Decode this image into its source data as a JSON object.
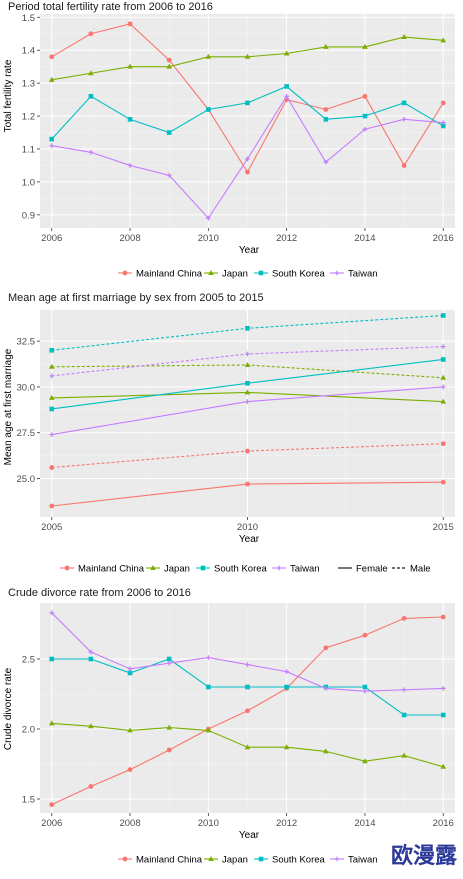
{
  "chart_data": [
    {
      "type": "line",
      "title": "Period total fertility rate from 2006 to 2016",
      "xlabel": "Year",
      "ylabel": "Total fertility rate",
      "x": [
        2006,
        2007,
        2008,
        2009,
        2010,
        2011,
        2012,
        2013,
        2014,
        2015,
        2016
      ],
      "xlim": [
        2005.7,
        2016.3
      ],
      "ylim": [
        0.86,
        1.51
      ],
      "xticks": [
        2006,
        2008,
        2010,
        2012,
        2014,
        2016
      ],
      "yticks": [
        0.9,
        1.0,
        1.1,
        1.2,
        1.3,
        1.4,
        1.5
      ],
      "ytick_labels": [
        "0.9",
        "1.0",
        "1.1",
        "1.2",
        "1.3",
        "1.4",
        "1.5"
      ],
      "grid": true,
      "legend_position": "bottom",
      "series": [
        {
          "name": "Mainland China",
          "color": "#F8766D",
          "marker": "circle",
          "values": [
            1.38,
            1.45,
            1.48,
            1.37,
            1.22,
            1.03,
            1.25,
            1.22,
            1.26,
            1.05,
            1.24
          ]
        },
        {
          "name": "Japan",
          "color": "#7CAE00",
          "marker": "triangle",
          "values": [
            1.31,
            1.33,
            1.35,
            1.35,
            1.38,
            1.38,
            1.39,
            1.41,
            1.41,
            1.44,
            1.43
          ]
        },
        {
          "name": "South Korea",
          "color": "#00BFC4",
          "marker": "square",
          "values": [
            1.13,
            1.26,
            1.19,
            1.15,
            1.22,
            1.24,
            1.29,
            1.19,
            1.2,
            1.24,
            1.17
          ]
        },
        {
          "name": "Taiwan",
          "color": "#C77CFF",
          "marker": "cross",
          "values": [
            1.11,
            1.09,
            1.05,
            1.02,
            0.89,
            1.07,
            1.26,
            1.06,
            1.16,
            1.19,
            1.18
          ]
        }
      ]
    },
    {
      "type": "line",
      "title": "Mean age at first marriage by sex from 2005 to 2015",
      "xlabel": "Year",
      "ylabel": "Mean age at first marriage",
      "x": [
        2005,
        2010,
        2015
      ],
      "xlim": [
        2004.7,
        2015.3
      ],
      "ylim": [
        22.9,
        34.2
      ],
      "xticks": [
        2005,
        2010,
        2015
      ],
      "yticks": [
        25.0,
        27.5,
        30.0,
        32.5
      ],
      "ytick_labels": [
        "25.0",
        "27.5",
        "30.0",
        "32.5"
      ],
      "grid": true,
      "legend_position": "bottom",
      "linetype_legend": [
        {
          "label": "Female",
          "dash": "solid"
        },
        {
          "label": "Male",
          "dash": "dashed"
        }
      ],
      "series": [
        {
          "name": "Mainland China",
          "color": "#F8766D",
          "marker": "circle",
          "sex": "Female",
          "values": [
            23.5,
            24.7,
            24.8
          ]
        },
        {
          "name": "Mainland China",
          "color": "#F8766D",
          "marker": "circle",
          "sex": "Male",
          "values": [
            25.6,
            26.5,
            26.9
          ]
        },
        {
          "name": "Japan",
          "color": "#7CAE00",
          "marker": "triangle",
          "sex": "Female",
          "values": [
            29.4,
            29.7,
            29.2
          ]
        },
        {
          "name": "Japan",
          "color": "#7CAE00",
          "marker": "triangle",
          "sex": "Male",
          "values": [
            31.1,
            31.2,
            30.5
          ]
        },
        {
          "name": "South Korea",
          "color": "#00BFC4",
          "marker": "square",
          "sex": "Female",
          "values": [
            28.8,
            30.2,
            31.5
          ]
        },
        {
          "name": "South Korea",
          "color": "#00BFC4",
          "marker": "square",
          "sex": "Male",
          "values": [
            32.0,
            33.2,
            33.9
          ]
        },
        {
          "name": "Taiwan",
          "color": "#C77CFF",
          "marker": "cross",
          "sex": "Female",
          "values": [
            27.4,
            29.2,
            30.0
          ]
        },
        {
          "name": "Taiwan",
          "color": "#C77CFF",
          "marker": "cross",
          "sex": "Male",
          "values": [
            30.6,
            31.8,
            32.2
          ]
        }
      ]
    },
    {
      "type": "line",
      "title": "Crude divorce rate from 2006 to 2016",
      "xlabel": "Year",
      "ylabel": "Crude divorce rate",
      "x": [
        2006,
        2007,
        2008,
        2009,
        2010,
        2011,
        2012,
        2013,
        2014,
        2015,
        2016
      ],
      "xlim": [
        2005.7,
        2016.3
      ],
      "ylim": [
        1.4,
        2.9
      ],
      "xticks": [
        2006,
        2008,
        2010,
        2012,
        2014,
        2016
      ],
      "yticks": [
        1.5,
        2.0,
        2.5
      ],
      "ytick_labels": [
        "1.5",
        "2.0",
        "2.5"
      ],
      "grid": true,
      "legend_position": "bottom",
      "series": [
        {
          "name": "Mainland China",
          "color": "#F8766D",
          "marker": "circle",
          "values": [
            1.46,
            1.59,
            1.71,
            1.85,
            2.0,
            2.13,
            2.29,
            2.58,
            2.67,
            2.79,
            2.8
          ]
        },
        {
          "name": "Japan",
          "color": "#7CAE00",
          "marker": "triangle",
          "values": [
            2.04,
            2.02,
            1.99,
            2.01,
            1.99,
            1.87,
            1.87,
            1.84,
            1.77,
            1.81,
            1.73
          ]
        },
        {
          "name": "South Korea",
          "color": "#00BFC4",
          "marker": "square",
          "values": [
            2.5,
            2.5,
            2.4,
            2.5,
            2.3,
            2.3,
            2.3,
            2.3,
            2.3,
            2.1,
            2.1
          ]
        },
        {
          "name": "Taiwan",
          "color": "#C77CFF",
          "marker": "cross",
          "values": [
            2.83,
            2.55,
            2.43,
            2.47,
            2.51,
            2.46,
            2.41,
            2.29,
            2.27,
            2.28,
            2.29
          ]
        }
      ]
    }
  ],
  "watermark": "欧漫露"
}
